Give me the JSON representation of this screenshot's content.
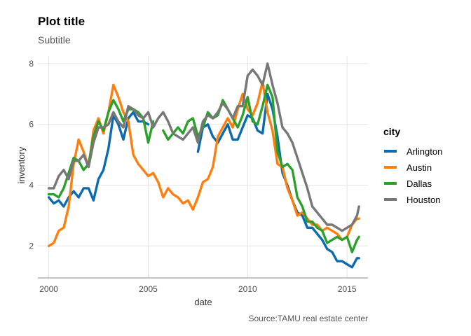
{
  "chart_data": {
    "type": "line",
    "title": "Plot title",
    "subtitle": "Subtitle",
    "caption": "Source:TAMU real estate center",
    "xlabel": "date",
    "ylabel": "inventory",
    "xlim": [
      1999.45,
      2016.05
    ],
    "ylim": [
      0.95,
      8.25
    ],
    "x_ticks": [
      2000,
      2005,
      2010,
      2015
    ],
    "y_ticks": [
      2,
      4,
      6,
      8
    ],
    "legend": {
      "title": "city",
      "position": "right"
    },
    "series": [
      {
        "name": "Arlington",
        "color": "#0C6BAE",
        "x": [
          2000.0,
          2000.25,
          2000.5,
          2000.75,
          2001.0,
          2001.25,
          2001.5,
          2001.75,
          2002.0,
          2002.25,
          2002.5,
          2002.75,
          2003.0,
          2003.25,
          2003.5,
          2003.75,
          2004.0,
          2004.25,
          2004.5,
          2004.75,
          2005.0,
          2005.25,
          2005.5,
          2005.75,
          2006.0,
          2006.25,
          2006.5,
          2006.75,
          2007.0,
          2007.25,
          2007.5,
          2007.75,
          2008.0,
          2008.25,
          2008.5,
          2008.75,
          2009.0,
          2009.25,
          2009.5,
          2009.75,
          2010.0,
          2010.25,
          2010.5,
          2010.75,
          2011.0,
          2011.25,
          2011.5,
          2011.75,
          2012.0,
          2012.25,
          2012.5,
          2012.75,
          2013.0,
          2013.25,
          2013.5,
          2013.75,
          2014.0,
          2014.25,
          2014.5,
          2014.75,
          2015.0,
          2015.25,
          2015.5,
          2015.6
        ],
        "y": [
          3.6,
          3.4,
          3.5,
          3.3,
          3.6,
          3.8,
          3.6,
          3.9,
          3.9,
          3.5,
          4.2,
          4.5,
          5.2,
          6.3,
          6.0,
          5.5,
          6.2,
          6.4,
          6.1,
          6.1,
          6.0,
          null,
          null,
          null,
          null,
          null,
          null,
          null,
          null,
          null,
          5.1,
          5.9,
          6.0,
          5.6,
          5.4,
          5.7,
          6.0,
          5.5,
          5.5,
          5.9,
          6.3,
          6.2,
          5.8,
          5.7,
          7.0,
          6.5,
          5.6,
          4.4,
          4.0,
          3.5,
          3.1,
          3.0,
          2.6,
          2.6,
          2.4,
          2.2,
          1.9,
          1.8,
          1.5,
          1.5,
          1.4,
          1.3,
          1.6,
          1.6
        ]
      },
      {
        "name": "Austin",
        "color": "#FF7F0E",
        "x": [
          2000.0,
          2000.25,
          2000.5,
          2000.75,
          2001.0,
          2001.25,
          2001.5,
          2001.75,
          2002.0,
          2002.25,
          2002.5,
          2002.75,
          2003.0,
          2003.25,
          2003.5,
          2003.75,
          2004.0,
          2004.25,
          2004.5,
          2004.75,
          2005.0,
          2005.25,
          2005.5,
          2005.75,
          2006.0,
          2006.25,
          2006.5,
          2006.75,
          2007.0,
          2007.25,
          2007.5,
          2007.75,
          2008.0,
          2008.25,
          2008.5,
          2008.75,
          2009.0,
          2009.25,
          2009.5,
          2009.75,
          2010.0,
          2010.25,
          2010.5,
          2010.75,
          2011.0,
          2011.25,
          2011.5,
          2011.75,
          2012.0,
          2012.25,
          2012.5,
          2012.75,
          2013.0,
          2013.25,
          2013.5,
          2013.75,
          2014.0,
          2014.25,
          2014.5,
          2014.75,
          2015.0,
          2015.25,
          2015.5,
          2015.6
        ],
        "y": [
          2.0,
          2.1,
          2.5,
          2.6,
          3.3,
          4.7,
          5.5,
          5.1,
          4.6,
          5.8,
          6.2,
          5.7,
          6.4,
          7.3,
          6.9,
          6.4,
          6.1,
          5.0,
          4.7,
          4.5,
          4.3,
          4.4,
          4.1,
          3.6,
          3.9,
          3.7,
          3.6,
          3.4,
          3.5,
          3.2,
          3.6,
          4.1,
          4.2,
          4.6,
          5.6,
          5.9,
          6.2,
          5.9,
          6.5,
          7.0,
          6.5,
          6.3,
          6.7,
          7.4,
          6.4,
          5.8,
          4.7,
          4.6,
          3.9,
          3.5,
          3.0,
          3.1,
          2.9,
          2.7,
          2.7,
          2.5,
          2.6,
          2.5,
          2.4,
          2.2,
          2.3,
          2.7,
          2.9,
          2.9
        ]
      },
      {
        "name": "Dallas",
        "color": "#2CA02C",
        "x": [
          2000.0,
          2000.25,
          2000.5,
          2000.75,
          2001.0,
          2001.25,
          2001.5,
          2001.75,
          2002.0,
          2002.25,
          2002.5,
          2002.75,
          2003.0,
          2003.25,
          2003.5,
          2003.75,
          2004.0,
          2004.25,
          2004.5,
          2004.75,
          2005.0,
          2005.25,
          2005.5,
          2005.75,
          2006.0,
          2006.25,
          2006.5,
          2006.75,
          2007.0,
          2007.25,
          2007.5,
          2007.75,
          2008.0,
          2008.25,
          2008.5,
          2008.75,
          2009.0,
          2009.25,
          2009.5,
          2009.75,
          2010.0,
          2010.25,
          2010.5,
          2010.75,
          2011.0,
          2011.25,
          2011.5,
          2011.75,
          2012.0,
          2012.25,
          2012.5,
          2012.75,
          2013.0,
          2013.25,
          2013.5,
          2013.75,
          2014.0,
          2014.25,
          2014.5,
          2014.75,
          2015.0,
          2015.25,
          2015.5,
          2015.6
        ],
        "y": [
          3.7,
          3.7,
          3.6,
          3.9,
          4.4,
          4.9,
          4.8,
          4.5,
          4.7,
          5.6,
          6.1,
          5.8,
          6.4,
          6.8,
          6.5,
          6.1,
          6.5,
          6.5,
          6.4,
          6.2,
          5.4,
          6.1,
          null,
          5.8,
          5.5,
          5.7,
          5.9,
          5.7,
          6.1,
          6.2,
          5.6,
          5.9,
          6.4,
          6.2,
          6.3,
          6.8,
          6.5,
          6.2,
          5.9,
          6.3,
          6.9,
          6.1,
          6.0,
          6.6,
          7.3,
          6.9,
          5.1,
          4.6,
          4.7,
          4.5,
          3.6,
          3.3,
          2.8,
          2.8,
          2.6,
          2.5,
          2.1,
          2.2,
          2.3,
          2.2,
          2.3,
          1.8,
          2.2,
          2.3
        ]
      },
      {
        "name": "Houston",
        "color": "#777777",
        "x": [
          2000.0,
          2000.25,
          2000.5,
          2000.75,
          2001.0,
          2001.25,
          2001.5,
          2001.75,
          2002.0,
          2002.25,
          2002.5,
          2002.75,
          2003.0,
          2003.25,
          2003.5,
          2003.75,
          2004.0,
          2004.25,
          2004.5,
          2004.75,
          2005.0,
          2005.25,
          2005.5,
          2005.75,
          2006.0,
          2006.25,
          2006.5,
          2006.75,
          2007.0,
          2007.25,
          2007.5,
          2007.75,
          2008.0,
          2008.25,
          2008.5,
          2008.75,
          2009.0,
          2009.25,
          2009.5,
          2009.75,
          2010.0,
          2010.25,
          2010.5,
          2010.75,
          2011.0,
          2011.25,
          2011.5,
          2011.75,
          2012.0,
          2012.25,
          2012.5,
          2012.75,
          2013.0,
          2013.25,
          2013.5,
          2013.75,
          2014.0,
          2014.25,
          2014.5,
          2014.75,
          2015.0,
          2015.25,
          2015.5,
          2015.6
        ],
        "y": [
          3.9,
          3.9,
          4.3,
          4.5,
          4.2,
          4.8,
          4.8,
          5.0,
          4.6,
          5.4,
          5.9,
          5.9,
          6.0,
          6.4,
          6.1,
          5.9,
          6.6,
          6.5,
          6.3,
          6.2,
          6.4,
          5.9,
          6.2,
          6.4,
          6.1,
          5.7,
          5.6,
          5.5,
          5.7,
          5.9,
          5.4,
          6.1,
          6.3,
          6.2,
          6.4,
          6.7,
          6.5,
          6.2,
          6.6,
          6.6,
          7.6,
          7.8,
          7.6,
          7.3,
          8.0,
          7.3,
          6.7,
          5.9,
          5.7,
          5.4,
          4.9,
          4.4,
          3.9,
          3.3,
          3.1,
          2.9,
          2.7,
          2.7,
          2.6,
          2.5,
          2.6,
          2.7,
          3.0,
          3.3
        ]
      }
    ]
  }
}
